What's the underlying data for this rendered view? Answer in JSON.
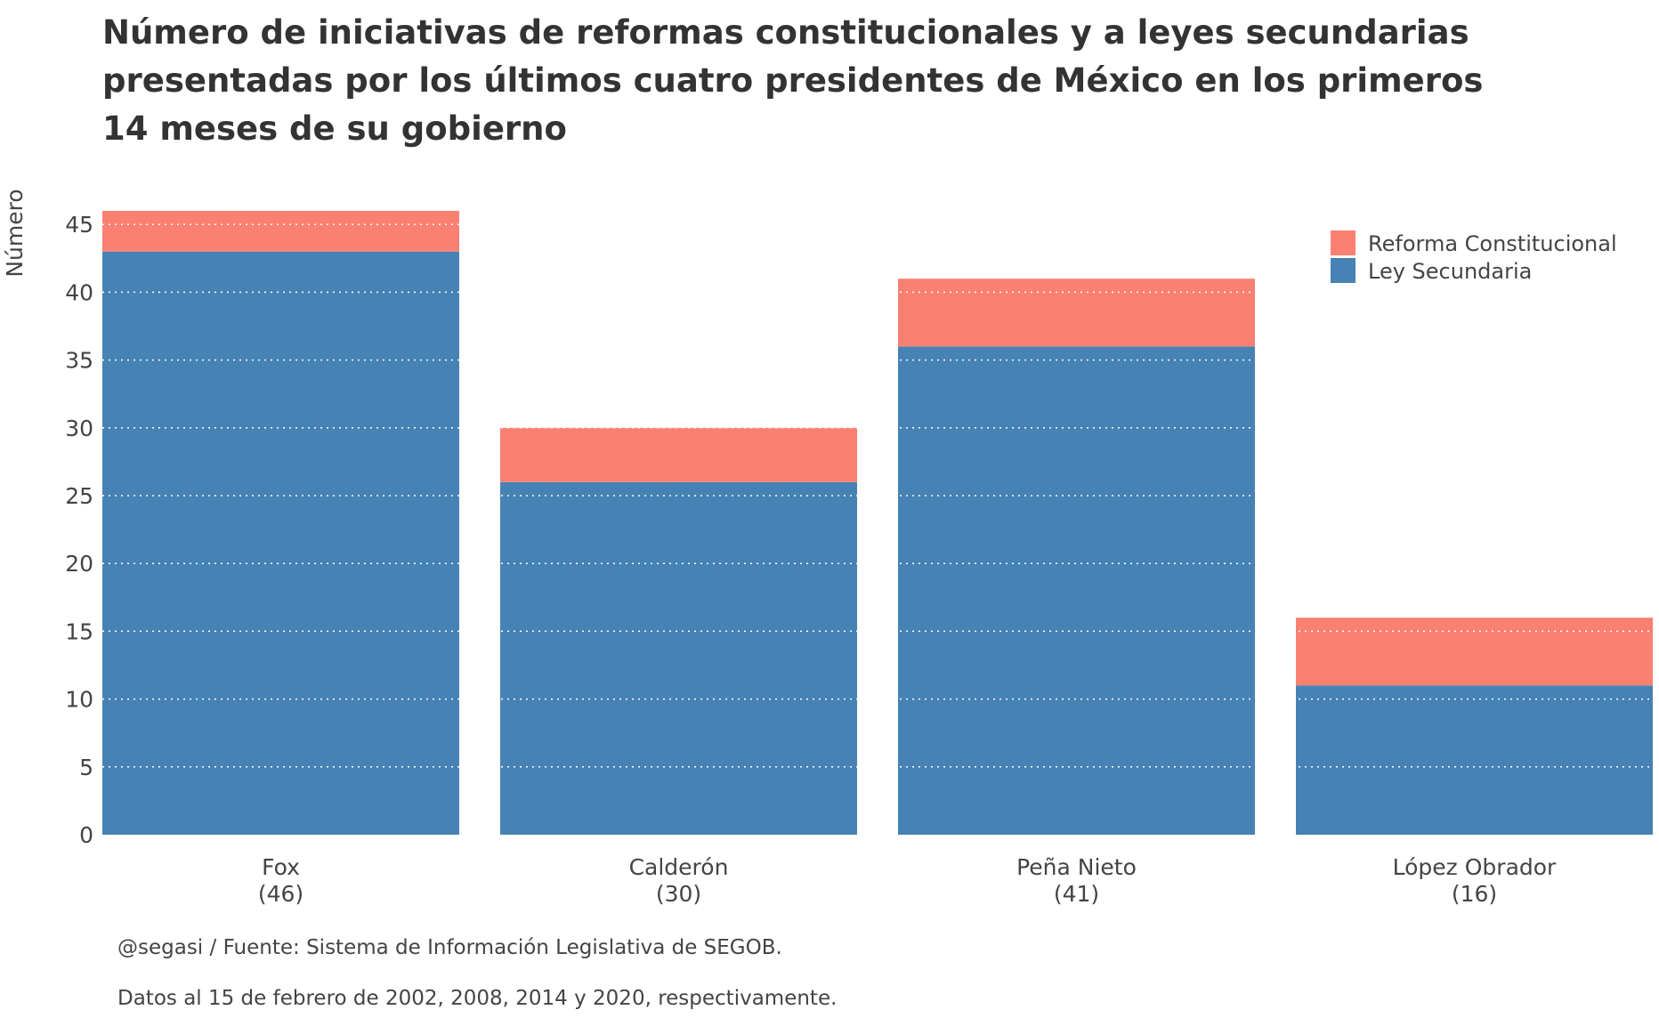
{
  "chart_data": {
    "type": "bar",
    "stacked": true,
    "title_lines": [
      "Número de iniciativas de reformas constitucionales y a leyes secundarias",
      "presentadas por los últimos cuatro presidentes de México en los primeros",
      "14 meses de su gobierno"
    ],
    "xlabel": "",
    "ylabel": "Número",
    "ylim": [
      0,
      46
    ],
    "yticks": [
      0,
      5,
      10,
      15,
      20,
      25,
      30,
      35,
      40,
      45
    ],
    "grid": "horizontal dotted white",
    "categories": [
      "Fox",
      "Calderón",
      "Peña Nieto",
      "López Obrador"
    ],
    "category_totals_labels": [
      "(46)",
      "(30)",
      "(41)",
      "(16)"
    ],
    "series": [
      {
        "name": "Ley Secundaria",
        "color": "#4682B4",
        "values": [
          43,
          26,
          36,
          11
        ]
      },
      {
        "name": "Reforma Constitucional",
        "color": "#FA8072",
        "values": [
          3,
          4,
          5,
          5
        ]
      }
    ],
    "legend": {
      "placement": "top-right",
      "order": [
        "Reforma Constitucional",
        "Ley Secundaria"
      ]
    },
    "captions": [
      "@segasi / Fuente: Sistema de Información Legislativa de SEGOB.",
      "Datos al 15 de febrero de 2002, 2008, 2014 y 2020, respectivamente."
    ]
  }
}
